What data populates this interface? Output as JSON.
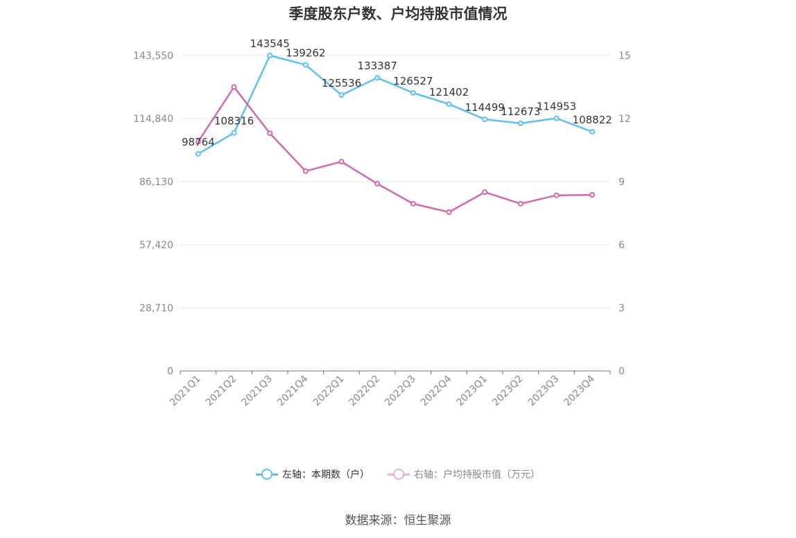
{
  "chart_data": {
    "type": "line",
    "title": "季度股东户数、户均持股市值情况",
    "categories": [
      "2021Q1",
      "2021Q2",
      "2021Q3",
      "2021Q4",
      "2022Q1",
      "2022Q2",
      "2022Q3",
      "2022Q4",
      "2023Q1",
      "2023Q2",
      "2023Q3",
      "2023Q4"
    ],
    "left_axis": {
      "ticks": [
        "0",
        "28,710",
        "57,420",
        "86,130",
        "114,840",
        "143,550"
      ],
      "ylim": [
        0,
        143550
      ]
    },
    "right_axis": {
      "ticks": [
        "0",
        "3",
        "6",
        "9",
        "12",
        "15"
      ],
      "ylim": [
        0,
        15
      ]
    },
    "series": [
      {
        "name": "左轴：本期数（户）",
        "axis": "left",
        "color": "#5bc0f0",
        "values": [
          98764,
          108316,
          143545,
          139262,
          125536,
          133387,
          126527,
          121402,
          114499,
          112673,
          114953,
          108822
        ],
        "labels": [
          "98764",
          "108316",
          "143545",
          "139262",
          "125536",
          "133387",
          "126527",
          "121402",
          "114499",
          "112673",
          "114953",
          "108822"
        ]
      },
      {
        "name": "右轴：户均持股市值（万元）",
        "axis": "right",
        "color": "#d466aa",
        "values": [
          10.9,
          13.5,
          11.3,
          9.5,
          9.95,
          8.9,
          7.95,
          7.55,
          8.5,
          7.95,
          8.35,
          8.37
        ]
      }
    ],
    "grid": true,
    "legend": "bottom"
  },
  "source": "数据来源：恒生聚源"
}
